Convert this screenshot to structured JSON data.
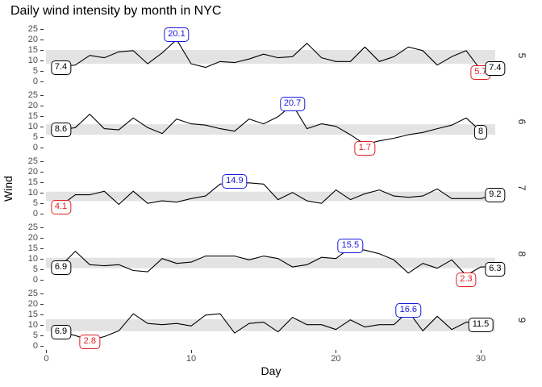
{
  "title": "Daily wind intensity by month in NYC",
  "axes": {
    "x_label": "Day",
    "y_label": "Wind",
    "x_ticks": [
      "0",
      "10",
      "20",
      "30"
    ],
    "y_ticks": [
      "0",
      "5",
      "10",
      "15",
      "20",
      "25"
    ]
  },
  "colors": {
    "line": "#000000",
    "band": "#e3e3e3",
    "max_label": "#1a1add",
    "min_label": "#e02020",
    "endpoint_label": "#000000",
    "axis_text": "#4d4d4d",
    "strip_text": "#1a1a1a"
  },
  "chart_data": {
    "type": "line",
    "title": "Daily wind intensity by month in NYC",
    "xlabel": "Day",
    "ylabel": "Wind",
    "x_range": [
      0,
      31
    ],
    "y_ticks": [
      0,
      5,
      10,
      15,
      20,
      25
    ],
    "x_ticks": [
      0,
      10,
      20,
      30
    ],
    "facet_variable": "Month",
    "legend": "none",
    "grid": "off",
    "facets": [
      {
        "month": "5",
        "band": [
          8.6,
          15.2
        ],
        "values": [
          7.4,
          8,
          12.6,
          11.5,
          14.3,
          14.9,
          8.6,
          13.8,
          20.1,
          8.6,
          6.9,
          9.7,
          9.2,
          10.9,
          13.2,
          11.5,
          12,
          18.4,
          11.5,
          9.7,
          9.7,
          16.6,
          9.7,
          12,
          16.6,
          14.9,
          8,
          12,
          14.9,
          5.7,
          7.4
        ],
        "labels": [
          {
            "kind": "first",
            "day": 1,
            "value": 7.4,
            "text": "7.4",
            "dy": 2
          },
          {
            "kind": "max",
            "day": 9,
            "value": 20.1,
            "text": "20.1",
            "dy": -6
          },
          {
            "kind": "min",
            "day": 30,
            "value": 5.7,
            "text": "5.7",
            "dy": 3
          },
          {
            "kind": "last",
            "day": 31,
            "value": 7.4,
            "text": "7.4",
            "dy": 3
          }
        ]
      },
      {
        "month": "6",
        "band": [
          6.3,
          11.3
        ],
        "values": [
          8.6,
          9.7,
          16.1,
          9.2,
          8.6,
          14.3,
          9.7,
          6.9,
          13.8,
          11.5,
          10.9,
          9.2,
          8,
          13.8,
          11.5,
          14.9,
          20.7,
          9.2,
          11.5,
          10.3,
          6.3,
          1.7,
          3.4,
          4.6,
          6.3,
          7.4,
          9.2,
          10.9,
          14.3,
          8
        ],
        "labels": [
          {
            "kind": "first",
            "day": 1,
            "value": 8.6,
            "text": "8.6",
            "dy": 0
          },
          {
            "kind": "max",
            "day": 17,
            "value": 20.7,
            "text": "20.7",
            "dy": -1
          },
          {
            "kind": "min",
            "day": 22,
            "value": 1.7,
            "text": "1.7",
            "dy": 5
          },
          {
            "kind": "last",
            "day": 30,
            "value": 8,
            "text": "8",
            "dy": 1
          }
        ]
      },
      {
        "month": "7",
        "band": [
          6.2,
          10.7
        ],
        "values": [
          4.1,
          9.2,
          9.2,
          10.9,
          4.6,
          10.9,
          5.1,
          6.3,
          5.7,
          7.4,
          8.6,
          14.3,
          14.9,
          14.9,
          14.3,
          6.9,
          10.3,
          6.3,
          5.1,
          11.5,
          6.9,
          9.7,
          11.5,
          8.6,
          8,
          8.6,
          12,
          7.4,
          7.4,
          7.4,
          9.2
        ],
        "labels": [
          {
            "kind": "min",
            "day": 1,
            "value": 4.1,
            "text": "4.1",
            "dy": 2
          },
          {
            "kind": "max",
            "day": 13,
            "value": 14.9,
            "text": "14.9",
            "dy": -2
          },
          {
            "kind": "last",
            "day": 31,
            "value": 9.2,
            "text": "9.2",
            "dy": 0
          }
        ]
      },
      {
        "month": "8",
        "band": [
          5.7,
          10.7
        ],
        "values": [
          6.9,
          13.8,
          7.4,
          6.9,
          7.4,
          4.6,
          4,
          10.3,
          8,
          8.6,
          11.5,
          11.5,
          11.5,
          9.7,
          11.5,
          10.3,
          6.3,
          7.4,
          10.9,
          10.3,
          15.5,
          14.3,
          12.6,
          9.7,
          3.4,
          8,
          5.7,
          9.7,
          2.3,
          6.3,
          6.3
        ],
        "labels": [
          {
            "kind": "first",
            "day": 1,
            "value": 6.9,
            "text": "6.9",
            "dy": 2
          },
          {
            "kind": "max",
            "day": 21,
            "value": 15.5,
            "text": "15.5",
            "dy": -2
          },
          {
            "kind": "min",
            "day": 29,
            "value": 2.3,
            "text": "2.3",
            "dy": 5
          },
          {
            "kind": "last",
            "day": 31,
            "value": 6.3,
            "text": "6.3",
            "dy": 3
          }
        ]
      },
      {
        "month": "9",
        "band": [
          7.2,
          12.9
        ],
        "values": [
          6.9,
          5.1,
          2.8,
          4.6,
          7.4,
          15.5,
          10.9,
          10.3,
          10.9,
          9.7,
          14.9,
          15.5,
          6.3,
          10.9,
          11.5,
          6.9,
          13.8,
          10.3,
          10.3,
          8,
          12.6,
          9.2,
          10.3,
          10.3,
          16.6,
          7.4,
          14.3,
          8,
          11.5,
          11.5
        ],
        "labels": [
          {
            "kind": "first",
            "day": 1,
            "value": 6.9,
            "text": "6.9",
            "dy": 0
          },
          {
            "kind": "min",
            "day": 3,
            "value": 2.8,
            "text": "2.8",
            "dy": 2
          },
          {
            "kind": "max",
            "day": 25,
            "value": 16.6,
            "text": "16.6",
            "dy": -1
          },
          {
            "kind": "last",
            "day": 30,
            "value": 11.5,
            "text": "11.5",
            "dy": 3
          }
        ]
      }
    ]
  }
}
